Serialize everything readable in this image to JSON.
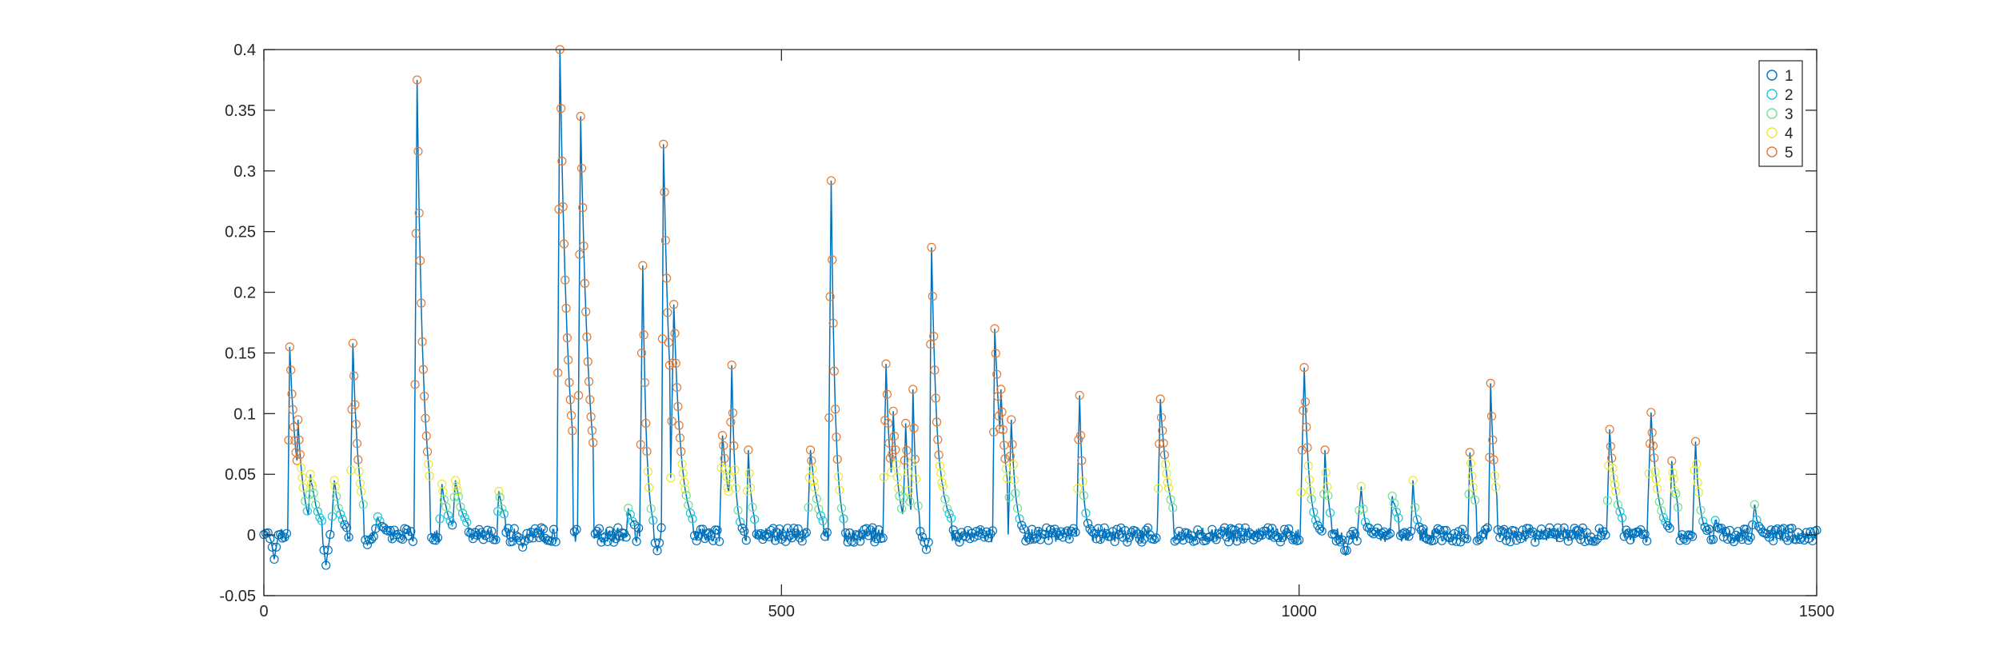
{
  "chart_data": {
    "type": "line",
    "title": "",
    "xlabel": "",
    "ylabel": "",
    "xlim": [
      0,
      1500
    ],
    "ylim": [
      -0.05,
      0.4
    ],
    "x_ticks": [
      0,
      500,
      1000,
      1500
    ],
    "x_tick_labels": [
      "0",
      "500",
      "1000",
      "1500"
    ],
    "y_ticks": [
      -0.05,
      0,
      0.05,
      0.1,
      0.15,
      0.2,
      0.25,
      0.3,
      0.35,
      0.4
    ],
    "y_tick_labels": [
      "-0.05",
      "0",
      "0.05",
      "0.1",
      "0.15",
      "0.2",
      "0.25",
      "0.3",
      "0.35",
      "0.4"
    ],
    "grid": false,
    "box": true,
    "line_color": "#0072BD",
    "marker": "circle",
    "marker_color_by_class": true,
    "legend": {
      "placement": "top-right",
      "entries": [
        {
          "name": "1",
          "color": "#0072BD"
        },
        {
          "name": "2",
          "color": "#1FC8D6"
        },
        {
          "name": "3",
          "color": "#6EE28E"
        },
        {
          "name": "4",
          "color": "#E8E83A"
        },
        {
          "name": "5",
          "color": "#E07B35"
        }
      ]
    },
    "class_thresholds": [
      0.01,
      0.02,
      0.035,
      0.06
    ],
    "signal": {
      "baseline": 0.0,
      "peaks": [
        {
          "x": 25,
          "y": 0.155
        },
        {
          "x": 33,
          "y": 0.095
        },
        {
          "x": 45,
          "y": 0.05
        },
        {
          "x": 68,
          "y": 0.045
        },
        {
          "x": 86,
          "y": 0.158
        },
        {
          "x": 110,
          "y": 0.015
        },
        {
          "x": 148,
          "y": 0.375
        },
        {
          "x": 172,
          "y": 0.042
        },
        {
          "x": 185,
          "y": 0.045
        },
        {
          "x": 227,
          "y": 0.036
        },
        {
          "x": 286,
          "y": 0.4
        },
        {
          "x": 306,
          "y": 0.345
        },
        {
          "x": 352,
          "y": 0.022
        },
        {
          "x": 366,
          "y": 0.222
        },
        {
          "x": 386,
          "y": 0.322
        },
        {
          "x": 396,
          "y": 0.19
        },
        {
          "x": 443,
          "y": 0.082
        },
        {
          "x": 452,
          "y": 0.14
        },
        {
          "x": 468,
          "y": 0.07
        },
        {
          "x": 528,
          "y": 0.07
        },
        {
          "x": 548,
          "y": 0.292
        },
        {
          "x": 601,
          "y": 0.141
        },
        {
          "x": 608,
          "y": 0.102
        },
        {
          "x": 620,
          "y": 0.092
        },
        {
          "x": 627,
          "y": 0.12
        },
        {
          "x": 645,
          "y": 0.237
        },
        {
          "x": 652,
          "y": 0.066
        },
        {
          "x": 706,
          "y": 0.17
        },
        {
          "x": 712,
          "y": 0.12
        },
        {
          "x": 722,
          "y": 0.095
        },
        {
          "x": 788,
          "y": 0.115
        },
        {
          "x": 866,
          "y": 0.112
        },
        {
          "x": 1005,
          "y": 0.138
        },
        {
          "x": 1025,
          "y": 0.07
        },
        {
          "x": 1060,
          "y": 0.04
        },
        {
          "x": 1090,
          "y": 0.032
        },
        {
          "x": 1110,
          "y": 0.045
        },
        {
          "x": 1165,
          "y": 0.068
        },
        {
          "x": 1185,
          "y": 0.125
        },
        {
          "x": 1300,
          "y": 0.087
        },
        {
          "x": 1340,
          "y": 0.101
        },
        {
          "x": 1360,
          "y": 0.061
        },
        {
          "x": 1383,
          "y": 0.077
        },
        {
          "x": 1402,
          "y": 0.012
        },
        {
          "x": 1440,
          "y": 0.025
        }
      ],
      "dips": [
        {
          "x": 10,
          "y": -0.02
        },
        {
          "x": 60,
          "y": -0.025
        },
        {
          "x": 100,
          "y": -0.008
        },
        {
          "x": 250,
          "y": -0.01
        },
        {
          "x": 380,
          "y": -0.013
        },
        {
          "x": 640,
          "y": -0.012
        },
        {
          "x": 1045,
          "y": -0.017
        },
        {
          "x": 1285,
          "y": -0.007
        }
      ]
    }
  }
}
